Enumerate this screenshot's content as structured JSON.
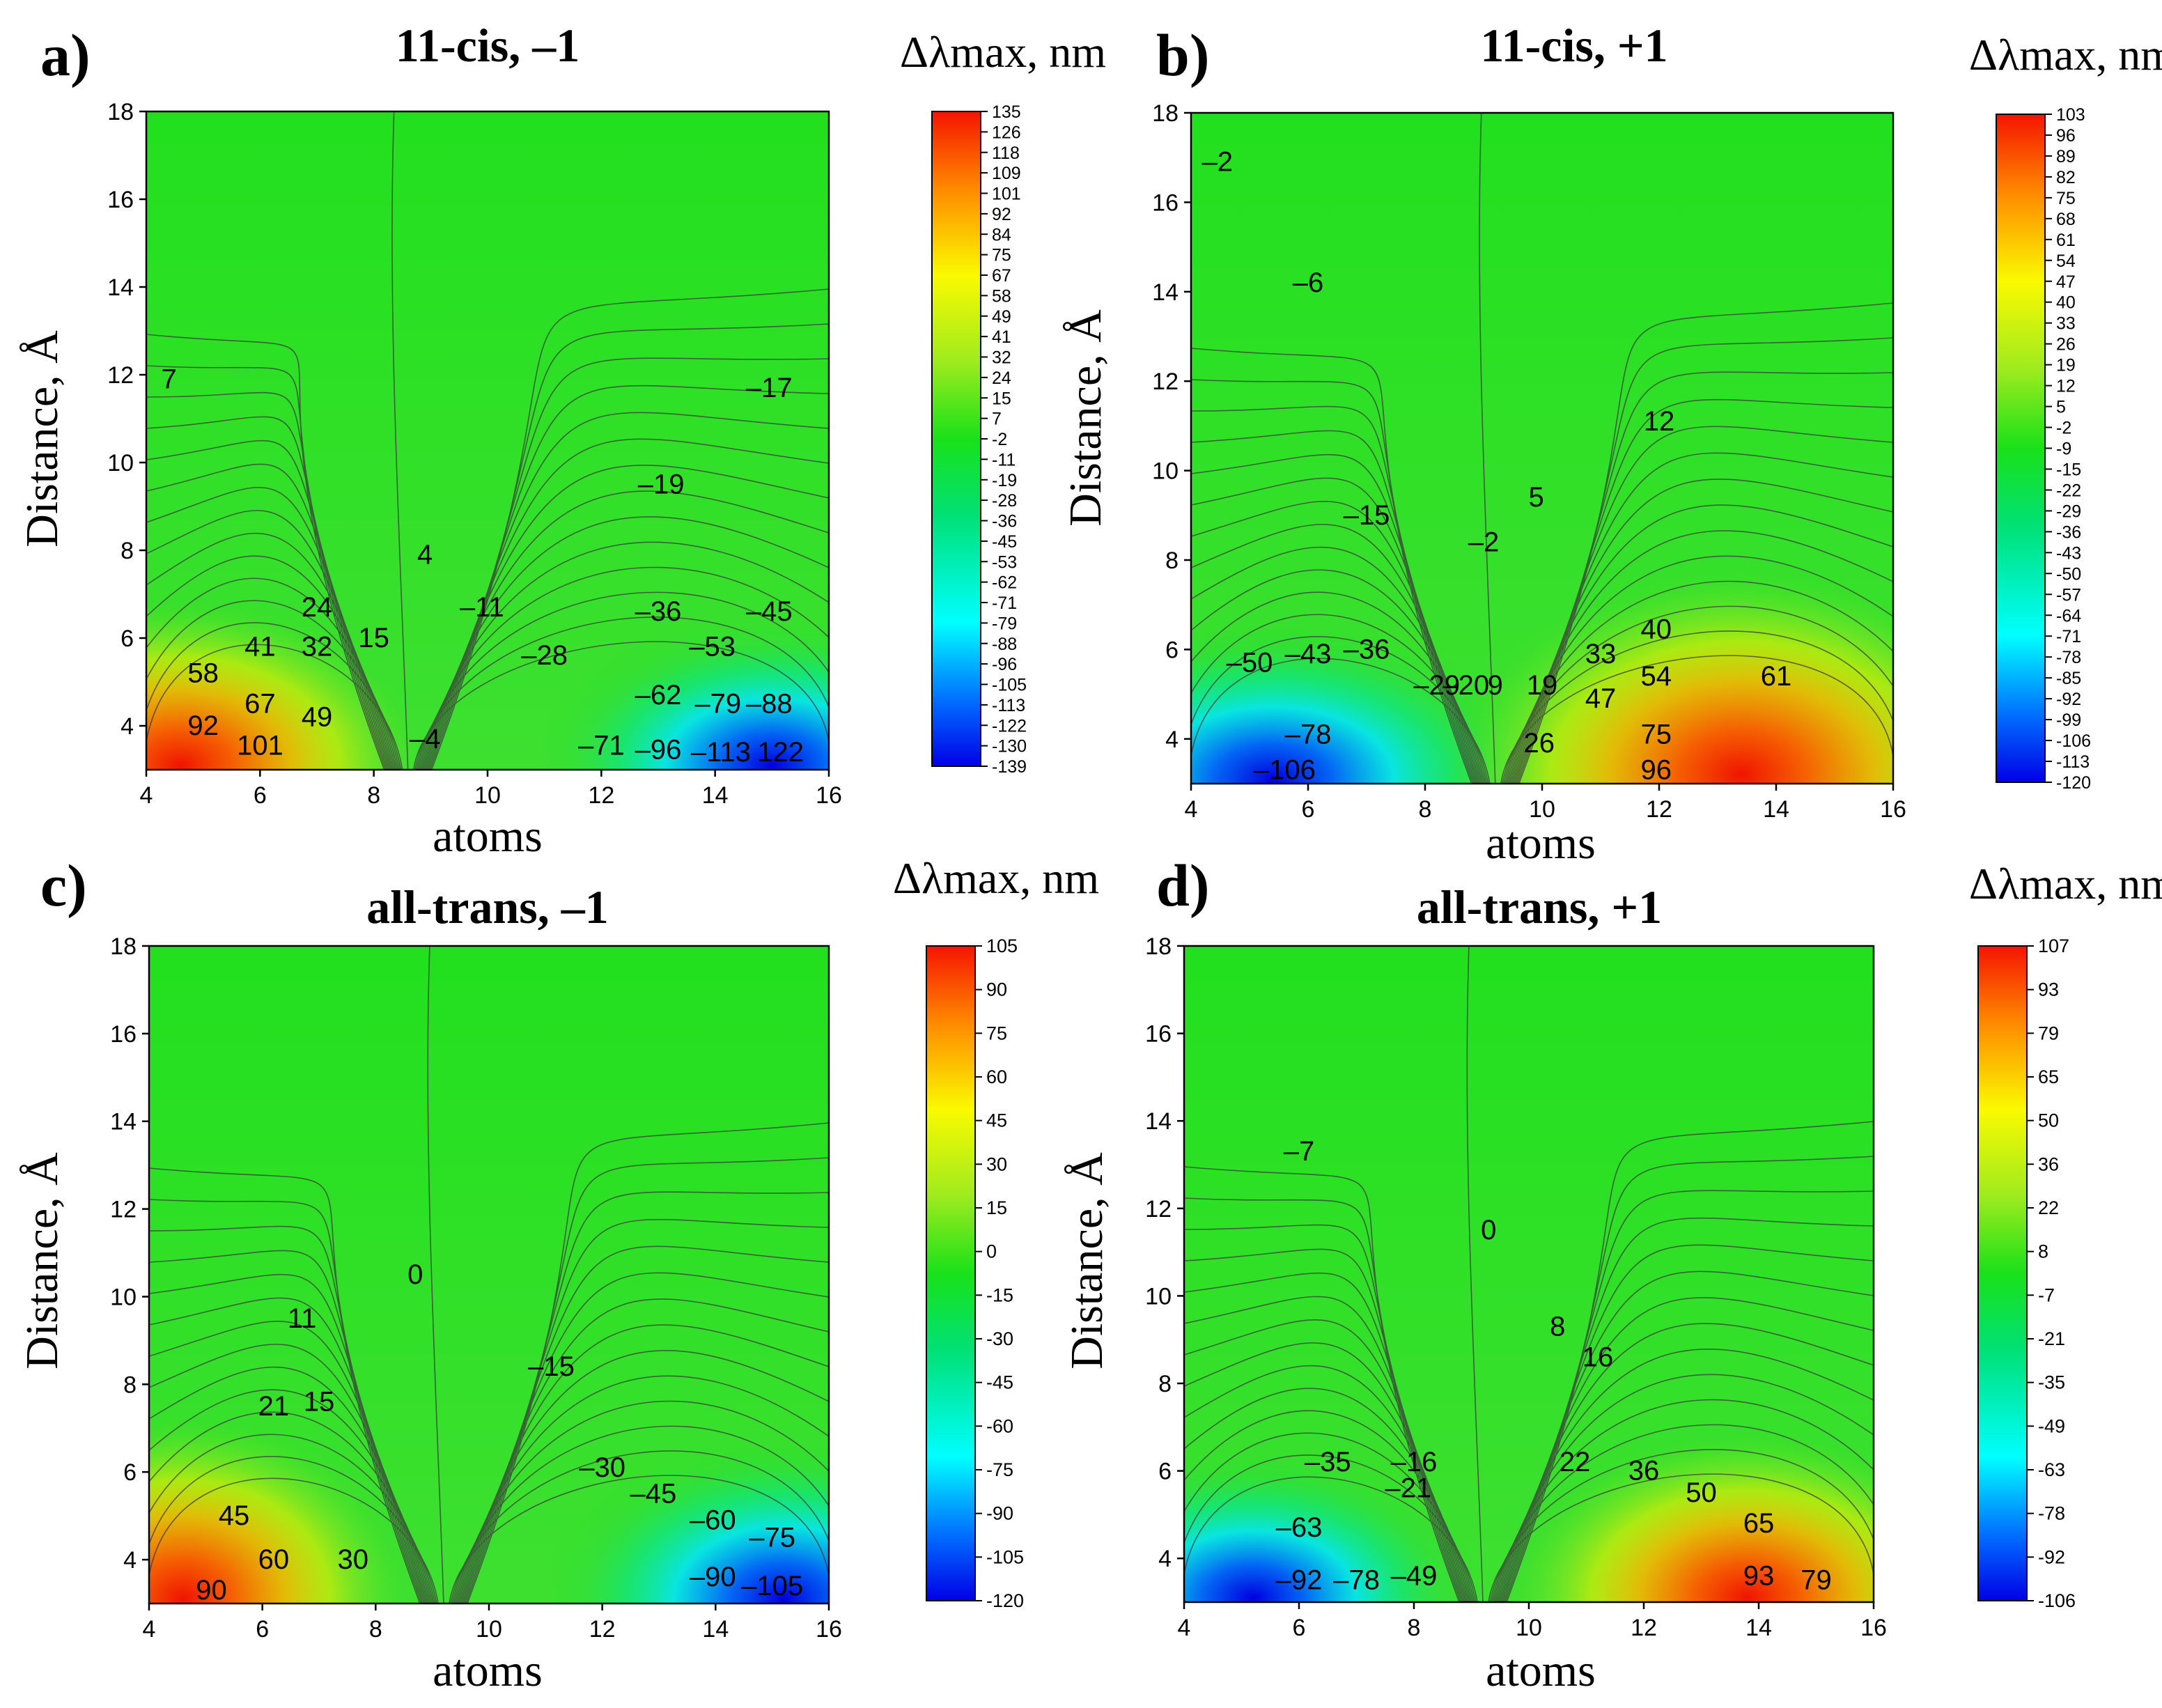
{
  "chart_data": [
    {
      "type": "heatmap",
      "panel_label": "a)",
      "title": "11-cis, –1",
      "xlabel": "atoms",
      "ylabel": "Distance, Å",
      "colorbar_title": "Δλmax, nm",
      "xlim": [
        4,
        16
      ],
      "ylim": [
        3,
        18
      ],
      "x_ticks": [
        "4",
        "6",
        "8",
        "10",
        "12",
        "14",
        "16"
      ],
      "y_ticks": [
        "4",
        "6",
        "8",
        "10",
        "12",
        "14",
        "16",
        "18"
      ],
      "colorbar_range": [
        -139,
        135
      ],
      "colorbar_ticks": [
        "135",
        "126",
        "118",
        "109",
        "101",
        "92",
        "84",
        "75",
        "67",
        "58",
        "49",
        "41",
        "32",
        "24",
        "15",
        "7",
        "-2",
        "-11",
        "-19",
        "-28",
        "-36",
        "-45",
        "-53",
        "-62",
        "-71",
        "-79",
        "-88",
        "-96",
        "-105",
        "-113",
        "-122",
        "-130",
        "-139"
      ],
      "contour_labels": [
        {
          "text": "7",
          "x": 4.4,
          "y": 11.9
        },
        {
          "text": "4",
          "x": 8.9,
          "y": 7.9
        },
        {
          "text": "–11",
          "x": 9.9,
          "y": 6.7
        },
        {
          "text": "–17",
          "x": 14.95,
          "y": 11.7
        },
        {
          "text": "–19",
          "x": 13.05,
          "y": 9.5
        },
        {
          "text": "24",
          "x": 7.0,
          "y": 6.7
        },
        {
          "text": "15",
          "x": 8.0,
          "y": 6.0
        },
        {
          "text": "–28",
          "x": 11.0,
          "y": 5.6
        },
        {
          "text": "–36",
          "x": 13.0,
          "y": 6.6
        },
        {
          "text": "–45",
          "x": 14.95,
          "y": 6.6
        },
        {
          "text": "41",
          "x": 6.0,
          "y": 5.8
        },
        {
          "text": "32",
          "x": 7.0,
          "y": 5.8
        },
        {
          "text": "58",
          "x": 5.0,
          "y": 5.2
        },
        {
          "text": "67",
          "x": 6.0,
          "y": 4.5
        },
        {
          "text": "49",
          "x": 7.0,
          "y": 4.2
        },
        {
          "text": "–53",
          "x": 13.95,
          "y": 5.8
        },
        {
          "text": "–62",
          "x": 13.0,
          "y": 4.7
        },
        {
          "text": "–79",
          "x": 14.05,
          "y": 4.5
        },
        {
          "text": "–88",
          "x": 14.95,
          "y": 4.5
        },
        {
          "text": "92",
          "x": 5.0,
          "y": 4.0
        },
        {
          "text": "101",
          "x": 6.0,
          "y": 3.55
        },
        {
          "text": "–4",
          "x": 8.9,
          "y": 3.7
        },
        {
          "text": "–71",
          "x": 12.0,
          "y": 3.55
        },
        {
          "text": "–96",
          "x": 13.0,
          "y": 3.45
        },
        {
          "text": "–113",
          "x": 14.1,
          "y": 3.4
        },
        {
          "text": "122",
          "x": 15.15,
          "y": 3.4
        }
      ]
    },
    {
      "type": "heatmap",
      "panel_label": "b)",
      "title": "11-cis, +1",
      "xlabel": "atoms",
      "ylabel": "Distance, Å",
      "colorbar_title": "Δλmax, nm",
      "xlim": [
        4,
        16
      ],
      "ylim": [
        3,
        18
      ],
      "x_ticks": [
        "4",
        "6",
        "8",
        "10",
        "12",
        "14",
        "16"
      ],
      "y_ticks": [
        "4",
        "6",
        "8",
        "10",
        "12",
        "14",
        "16",
        "18"
      ],
      "colorbar_range": [
        -120,
        103
      ],
      "colorbar_ticks": [
        "103",
        "96",
        "89",
        "82",
        "75",
        "68",
        "61",
        "54",
        "47",
        "40",
        "33",
        "26",
        "19",
        "12",
        "5",
        "-2",
        "-9",
        "-15",
        "-22",
        "-29",
        "-36",
        "-43",
        "-50",
        "-57",
        "-64",
        "-71",
        "-78",
        "-85",
        "-92",
        "-99",
        "-106",
        "-113",
        "-120"
      ],
      "contour_labels": [
        {
          "text": "–2",
          "x": 4.45,
          "y": 16.9
        },
        {
          "text": "–6",
          "x": 6.0,
          "y": 14.2
        },
        {
          "text": "12",
          "x": 12.0,
          "y": 11.1
        },
        {
          "text": "5",
          "x": 9.9,
          "y": 9.4
        },
        {
          "text": "–15",
          "x": 7.0,
          "y": 9.0
        },
        {
          "text": "–2",
          "x": 9.0,
          "y": 8.4
        },
        {
          "text": "40",
          "x": 11.95,
          "y": 6.45
        },
        {
          "text": "–50",
          "x": 5.0,
          "y": 5.7
        },
        {
          "text": "–43",
          "x": 6.0,
          "y": 5.9
        },
        {
          "text": "–36",
          "x": 7.0,
          "y": 6.0
        },
        {
          "text": "33",
          "x": 11.0,
          "y": 5.9
        },
        {
          "text": "54",
          "x": 11.95,
          "y": 5.4
        },
        {
          "text": "61",
          "x": 14.0,
          "y": 5.4
        },
        {
          "text": "–29",
          "x": 8.2,
          "y": 5.2
        },
        {
          "text": "–20",
          "x": 8.7,
          "y": 5.2
        },
        {
          "text": "9",
          "x": 9.2,
          "y": 5.2
        },
        {
          "text": "19",
          "x": 10.0,
          "y": 5.2
        },
        {
          "text": "47",
          "x": 11.0,
          "y": 4.9
        },
        {
          "text": "–78",
          "x": 6.0,
          "y": 4.1
        },
        {
          "text": "75",
          "x": 11.95,
          "y": 4.1
        },
        {
          "text": "26",
          "x": 9.95,
          "y": 3.9
        },
        {
          "text": "–106",
          "x": 5.6,
          "y": 3.3
        },
        {
          "text": "96",
          "x": 11.95,
          "y": 3.3
        }
      ]
    },
    {
      "type": "heatmap",
      "panel_label": "c)",
      "title": "all-trans, –1",
      "xlabel": "atoms",
      "ylabel": "Distance, Å",
      "colorbar_title": "Δλmax, nm",
      "xlim": [
        4,
        16
      ],
      "ylim": [
        3,
        18
      ],
      "x_ticks": [
        "4",
        "6",
        "8",
        "10",
        "12",
        "14",
        "16"
      ],
      "y_ticks": [
        "4",
        "6",
        "8",
        "10",
        "12",
        "14",
        "16",
        "18"
      ],
      "colorbar_range": [
        -120,
        105
      ],
      "colorbar_ticks": [
        "105",
        "90",
        "75",
        "60",
        "45",
        "30",
        "15",
        "0",
        "-15",
        "-30",
        "-45",
        "-60",
        "-75",
        "-90",
        "-105",
        "-120"
      ],
      "contour_labels": [
        {
          "text": "0",
          "x": 8.7,
          "y": 10.5
        },
        {
          "text": "11",
          "x": 6.7,
          "y": 9.5
        },
        {
          "text": "–15",
          "x": 11.1,
          "y": 8.4
        },
        {
          "text": "21",
          "x": 6.2,
          "y": 7.5
        },
        {
          "text": "15",
          "x": 7.0,
          "y": 7.6
        },
        {
          "text": "–30",
          "x": 12.0,
          "y": 6.1
        },
        {
          "text": "–45",
          "x": 12.9,
          "y": 5.5
        },
        {
          "text": "45",
          "x": 5.5,
          "y": 5.0
        },
        {
          "text": "–60",
          "x": 13.95,
          "y": 4.9
        },
        {
          "text": "–75",
          "x": 15.0,
          "y": 4.5
        },
        {
          "text": "60",
          "x": 6.2,
          "y": 4.0
        },
        {
          "text": "30",
          "x": 7.6,
          "y": 4.0
        },
        {
          "text": "–90",
          "x": 13.95,
          "y": 3.6
        },
        {
          "text": "90",
          "x": 5.1,
          "y": 3.3
        },
        {
          "text": "–105",
          "x": 15.0,
          "y": 3.4
        }
      ]
    },
    {
      "type": "heatmap",
      "panel_label": "d)",
      "title": "all-trans, +1",
      "xlabel": "atoms",
      "ylabel": "Distance, Å",
      "colorbar_title": "Δλmax, nm",
      "xlim": [
        4,
        16
      ],
      "ylim": [
        3,
        18
      ],
      "x_ticks": [
        "4",
        "6",
        "8",
        "10",
        "12",
        "14",
        "16"
      ],
      "y_ticks": [
        "4",
        "6",
        "8",
        "10",
        "12",
        "14",
        "16",
        "18"
      ],
      "colorbar_range": [
        -106,
        107
      ],
      "colorbar_ticks": [
        "107",
        "93",
        "79",
        "65",
        "50",
        "36",
        "22",
        "8",
        "-7",
        "-21",
        "-35",
        "-49",
        "-63",
        "-78",
        "-92",
        "-106"
      ],
      "contour_labels": [
        {
          "text": "–7",
          "x": 6.0,
          "y": 13.3
        },
        {
          "text": "0",
          "x": 9.3,
          "y": 11.5
        },
        {
          "text": "8",
          "x": 10.5,
          "y": 9.3
        },
        {
          "text": "16",
          "x": 11.2,
          "y": 8.6
        },
        {
          "text": "–35",
          "x": 6.5,
          "y": 6.2
        },
        {
          "text": "–16",
          "x": 8.0,
          "y": 6.2
        },
        {
          "text": "22",
          "x": 10.8,
          "y": 6.2
        },
        {
          "text": "36",
          "x": 12.0,
          "y": 6.0
        },
        {
          "text": "–21",
          "x": 7.9,
          "y": 5.6
        },
        {
          "text": "50",
          "x": 13.0,
          "y": 5.5
        },
        {
          "text": "–63",
          "x": 6.0,
          "y": 4.7
        },
        {
          "text": "65",
          "x": 14.0,
          "y": 4.8
        },
        {
          "text": "–92",
          "x": 6.0,
          "y": 3.5
        },
        {
          "text": "–78",
          "x": 7.0,
          "y": 3.5
        },
        {
          "text": "–49",
          "x": 8.0,
          "y": 3.6
        },
        {
          "text": "93",
          "x": 14.0,
          "y": 3.6
        },
        {
          "text": "79",
          "x": 15.0,
          "y": 3.5
        }
      ]
    }
  ]
}
